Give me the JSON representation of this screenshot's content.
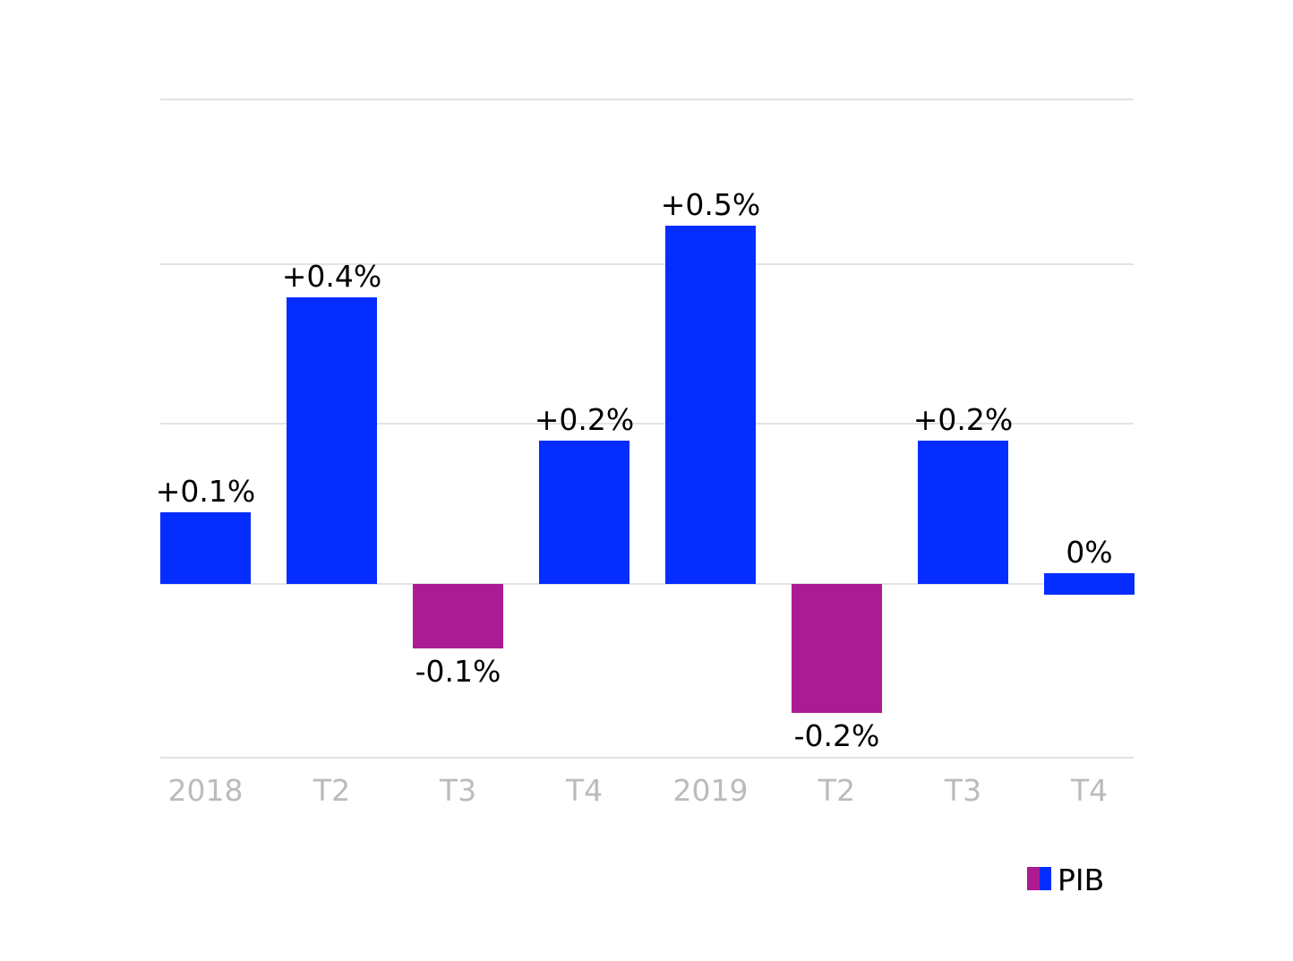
{
  "chart_data": {
    "type": "bar",
    "categories": [
      "2018",
      "T2",
      "T3",
      "T4",
      "2019",
      "T2",
      "T3",
      "T4"
    ],
    "values": [
      0.1,
      0.4,
      -0.1,
      0.2,
      0.5,
      -0.2,
      0.2,
      0
    ],
    "data_labels": [
      "+0.1%",
      "+0.4%",
      "-0.1%",
      "+0.2%",
      "+0.5%",
      "-0.2%",
      "+0.2%",
      "0%"
    ],
    "series": [
      {
        "name": "PIB",
        "values": [
          0.1,
          0.4,
          -0.1,
          0.2,
          0.5,
          -0.2,
          0.2,
          0
        ]
      }
    ],
    "legend": {
      "label": "PIB",
      "position": "bottom-right"
    },
    "colors": {
      "positive": "#052dff",
      "negative": "#ab1b94",
      "grid": "#e3e3e3",
      "tick_label": "#bbbbbb"
    },
    "grid": true,
    "title": "",
    "xlabel": "",
    "ylabel": ""
  }
}
